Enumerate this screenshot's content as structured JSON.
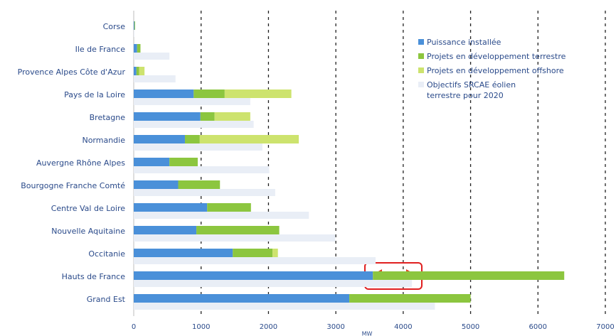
{
  "chart_data": {
    "type": "bar",
    "orientation": "horizontal",
    "categories": [
      "Corse",
      "Ile de France",
      "Provence Alpes Côte d'Azur",
      "Pays de la Loire",
      "Bretagne",
      "Normandie",
      "Auvergne Rhône Alpes",
      "Bourgogne Franche Comté",
      "Centre Val de Loire",
      "Nouvelle Aquitaine",
      "Occitanie",
      "Hauts de France",
      "Grand Est"
    ],
    "series": [
      {
        "name": "Puissance installée",
        "color": "#4a90d9",
        "values": [
          10,
          50,
          40,
          890,
          990,
          760,
          530,
          660,
          1090,
          930,
          1470,
          3550,
          3200
        ]
      },
      {
        "name": "Projets en développement terrestre",
        "color": "#8cc63f",
        "values": [
          10,
          50,
          40,
          460,
          210,
          220,
          420,
          620,
          650,
          1230,
          590,
          2840,
          1800
        ]
      },
      {
        "name": "Projets en développement offshore",
        "color": "#cde36e",
        "values": [
          0,
          0,
          80,
          990,
          530,
          1470,
          0,
          0,
          0,
          0,
          80,
          0,
          0
        ]
      },
      {
        "name": "Objectifs SRCAE éolien terrestre pour 2020",
        "color": "#e9eef6",
        "separate": true,
        "values": [
          10,
          530,
          620,
          1730,
          1780,
          1910,
          2010,
          2100,
          2600,
          2990,
          3590,
          4130,
          4470
        ]
      }
    ],
    "xlabel": "MW",
    "xlim": [
      0,
      7000
    ],
    "xticks": [
      0,
      1000,
      2000,
      3000,
      4000,
      5000,
      6000,
      7000
    ],
    "grid": true,
    "legend": "upper right"
  }
}
